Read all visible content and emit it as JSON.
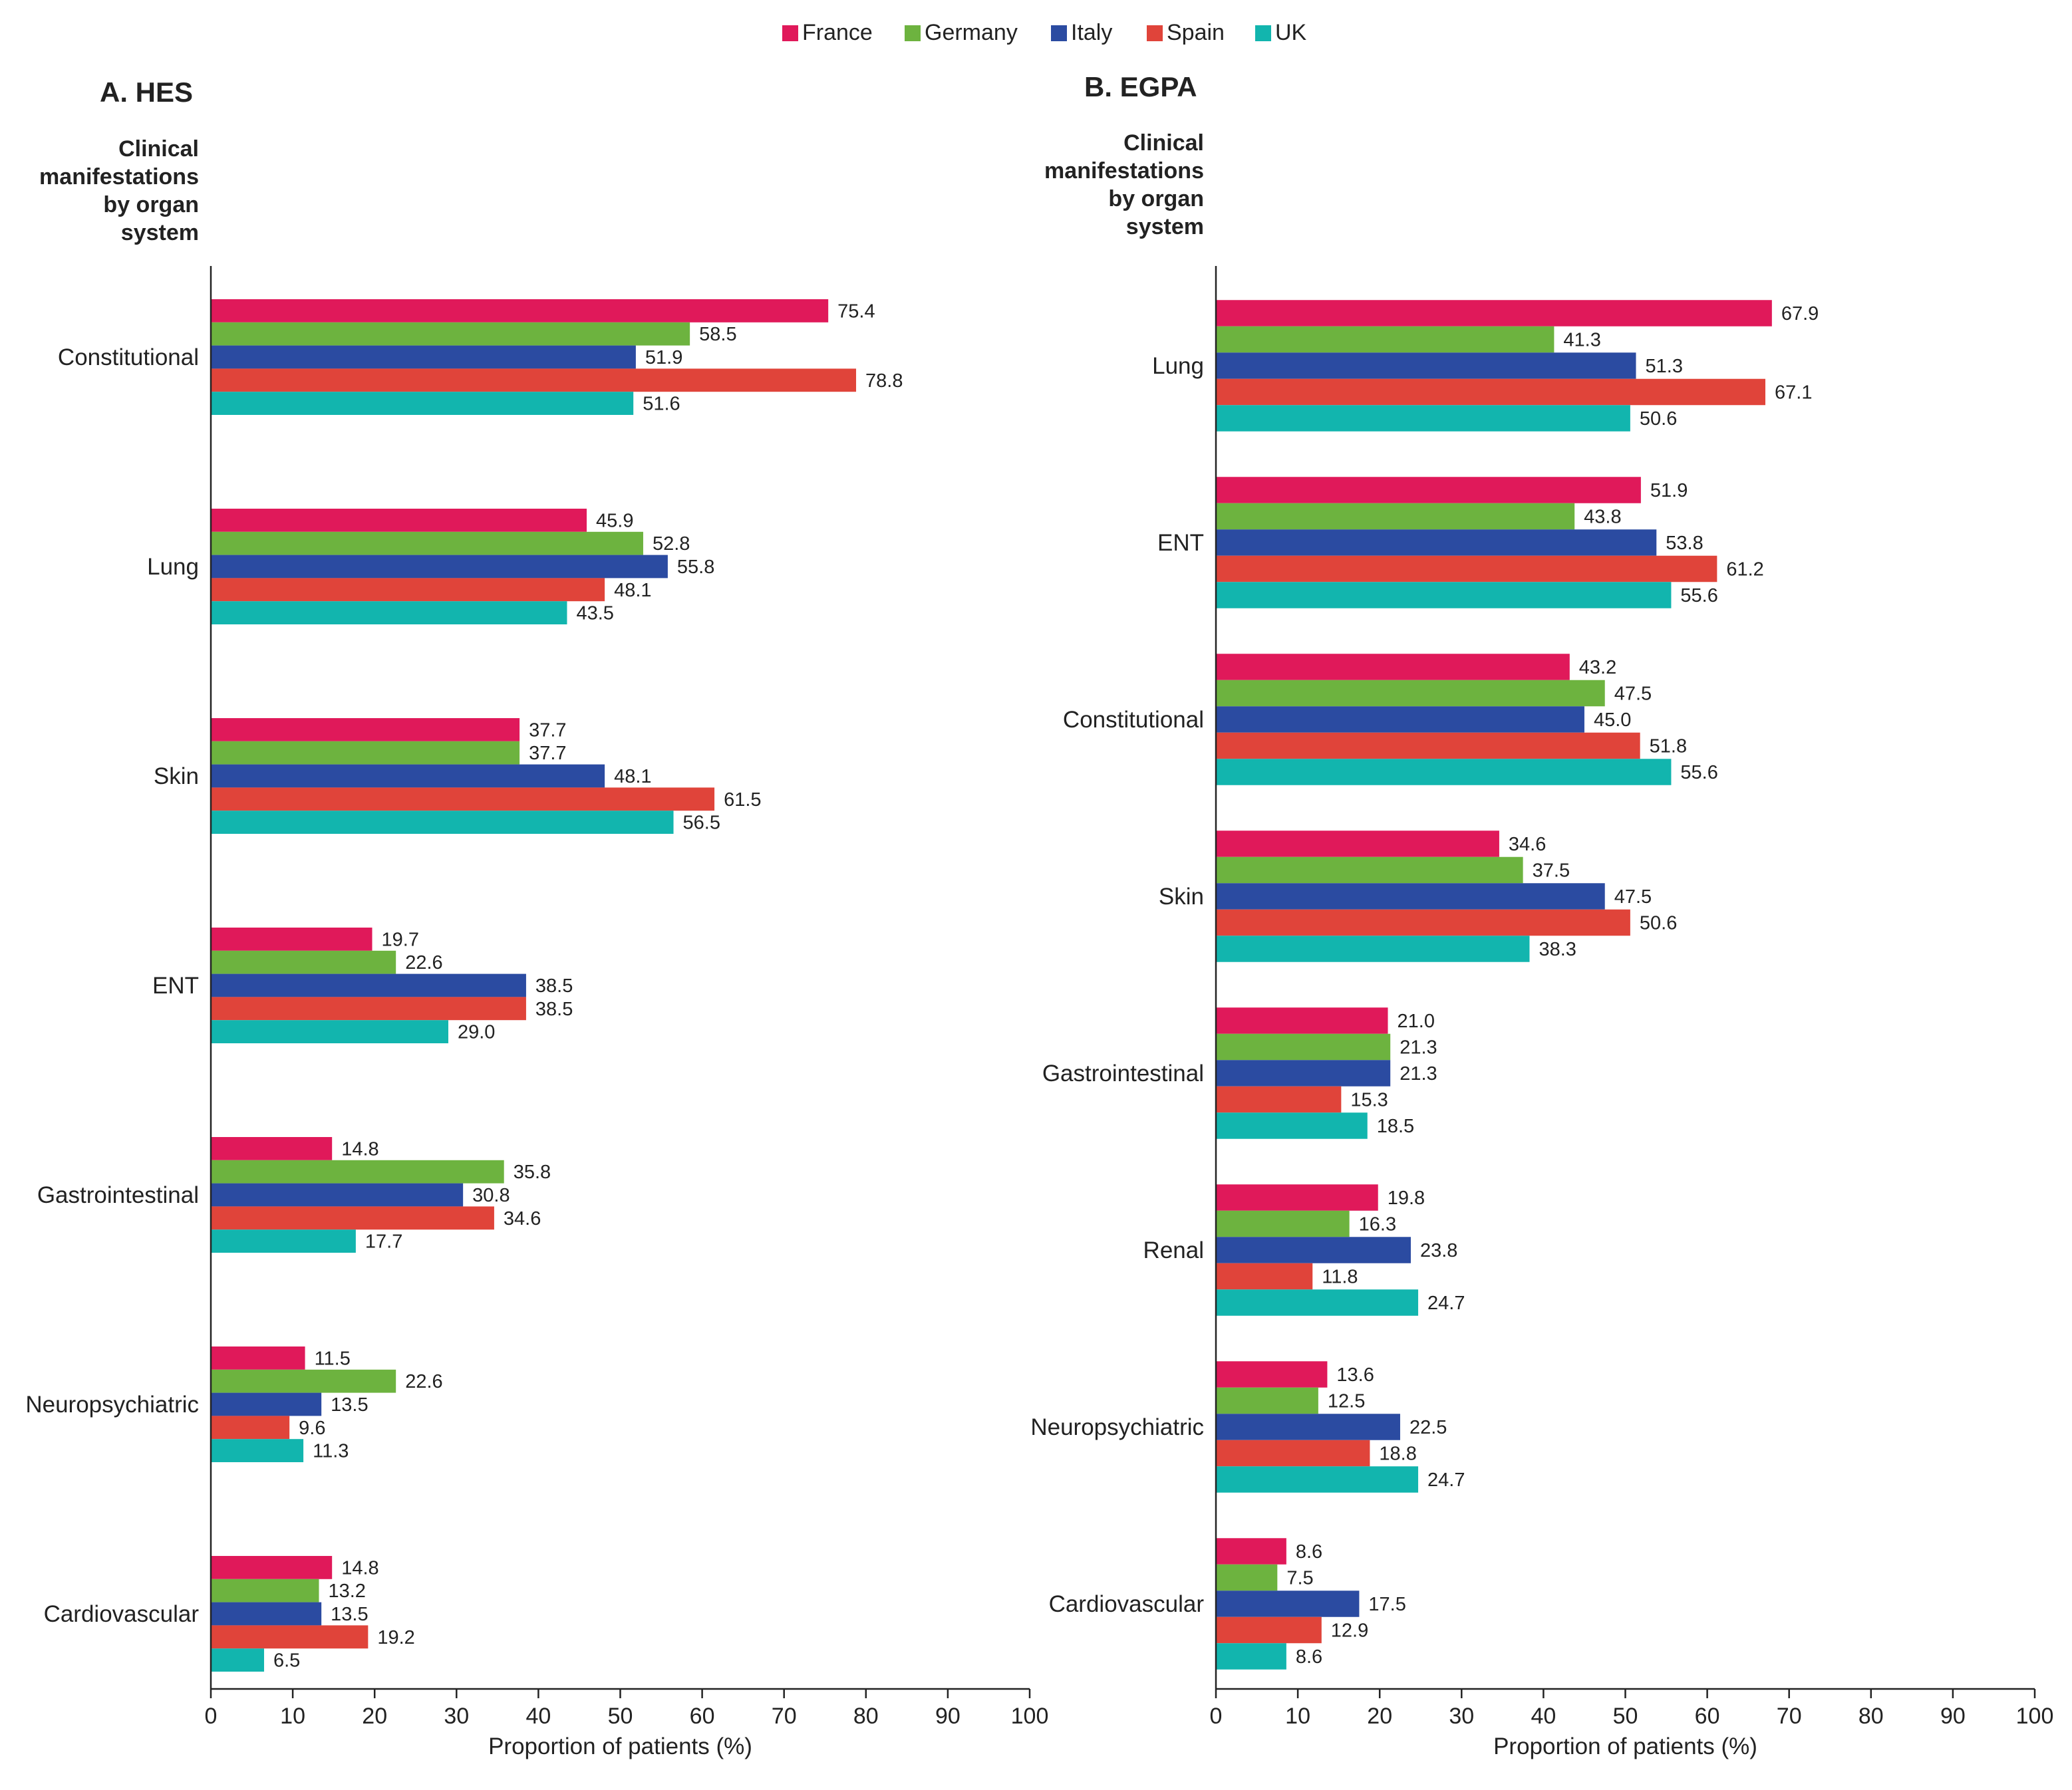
{
  "legend": [
    {
      "name": "France",
      "color": "#E0195A"
    },
    {
      "name": "Germany",
      "color": "#6DB33F"
    },
    {
      "name": "Italy",
      "color": "#2B4BA1"
    },
    {
      "name": "Spain",
      "color": "#E0443A"
    },
    {
      "name": "UK",
      "color": "#12B5AE"
    }
  ],
  "chart_data": [
    {
      "type": "bar",
      "orientation": "horizontal",
      "title": "A. HES",
      "ylabel_lines": [
        "Clinical",
        "manifestations",
        "by organ",
        "system"
      ],
      "xlabel": "Proportion of patients (%)",
      "xlim": [
        0,
        100
      ],
      "xticks": [
        "0",
        "10",
        "20",
        "30",
        "40",
        "50",
        "60",
        "70",
        "80",
        "90",
        "100"
      ],
      "categories": [
        "Constitutional",
        "Lung",
        "Skin",
        "ENT",
        "Gastrointestinal",
        "Neuropsychiatric",
        "Cardiovascular"
      ],
      "series": [
        {
          "name": "France",
          "values": [
            75.4,
            45.9,
            37.7,
            19.7,
            14.8,
            11.5,
            14.8
          ],
          "labels": [
            "75.4",
            "45.9",
            "37.7",
            "19.7",
            "14.8",
            "11.5",
            "14.8"
          ]
        },
        {
          "name": "Germany",
          "values": [
            58.5,
            52.8,
            37.7,
            22.6,
            35.8,
            22.6,
            13.2
          ],
          "labels": [
            "58.5",
            "52.8",
            "37.7",
            "22.6",
            "35.8",
            "22.6",
            "13.2"
          ]
        },
        {
          "name": "Italy",
          "values": [
            51.9,
            55.8,
            48.1,
            38.5,
            30.8,
            13.5,
            13.5
          ],
          "labels": [
            "51.9",
            "55.8",
            "48.1",
            "38.5",
            "30.8",
            "13.5",
            "13.5"
          ]
        },
        {
          "name": "Spain",
          "values": [
            78.8,
            48.1,
            61.5,
            38.5,
            34.6,
            9.6,
            19.2
          ],
          "labels": [
            "78.8",
            "48.1",
            "61.5",
            "38.5",
            "34.6",
            "9.6",
            "19.2"
          ]
        },
        {
          "name": "UK",
          "values": [
            51.6,
            43.5,
            56.5,
            29.0,
            17.7,
            11.3,
            6.5
          ],
          "labels": [
            "51.6",
            "43.5",
            "56.5",
            "29.0",
            "17.7",
            "11.3",
            "6.5"
          ]
        }
      ]
    },
    {
      "type": "bar",
      "orientation": "horizontal",
      "title": "B. EGPA",
      "ylabel_lines": [
        "Clinical",
        "manifestations",
        "by organ",
        "system"
      ],
      "xlabel": "Proportion of patients (%)",
      "xlim": [
        0,
        100
      ],
      "xticks": [
        "0",
        "10",
        "20",
        "30",
        "40",
        "50",
        "60",
        "70",
        "80",
        "90",
        "100"
      ],
      "categories": [
        "Lung",
        "ENT",
        "Constitutional",
        "Skin",
        "Gastrointestinal",
        "Renal",
        "Neuropsychiatric",
        "Cardiovascular"
      ],
      "series": [
        {
          "name": "France",
          "values": [
            67.9,
            51.9,
            43.2,
            34.6,
            21.0,
            19.8,
            13.6,
            8.6
          ],
          "labels": [
            "67.9",
            "51.9",
            "43.2",
            "34.6",
            "21.0",
            "19.8",
            "13.6",
            "8.6"
          ]
        },
        {
          "name": "Germany",
          "values": [
            41.3,
            43.8,
            47.5,
            37.5,
            21.3,
            16.3,
            12.5,
            7.5
          ],
          "labels": [
            "41.3",
            "43.8",
            "47.5",
            "37.5",
            "21.3",
            "16.3",
            "12.5",
            "7.5"
          ]
        },
        {
          "name": "Italy",
          "values": [
            51.3,
            53.8,
            45.0,
            47.5,
            21.3,
            23.8,
            22.5,
            17.5
          ],
          "labels": [
            "51.3",
            "53.8",
            "45.0",
            "47.5",
            "21.3",
            "23.8",
            "22.5",
            "17.5"
          ]
        },
        {
          "name": "Spain",
          "values": [
            67.1,
            61.2,
            51.8,
            50.6,
            15.3,
            11.8,
            18.8,
            12.9
          ],
          "labels": [
            "67.1",
            "61.2",
            "51.8",
            "50.6",
            "15.3",
            "11.8",
            "18.8",
            "12.9"
          ]
        },
        {
          "name": "UK",
          "values": [
            50.6,
            55.6,
            55.6,
            38.3,
            18.5,
            24.7,
            24.7,
            8.6
          ],
          "labels": [
            "50.6",
            "55.6",
            "55.6",
            "38.3",
            "18.5",
            "24.7",
            "24.7",
            "8.6"
          ]
        }
      ]
    }
  ]
}
